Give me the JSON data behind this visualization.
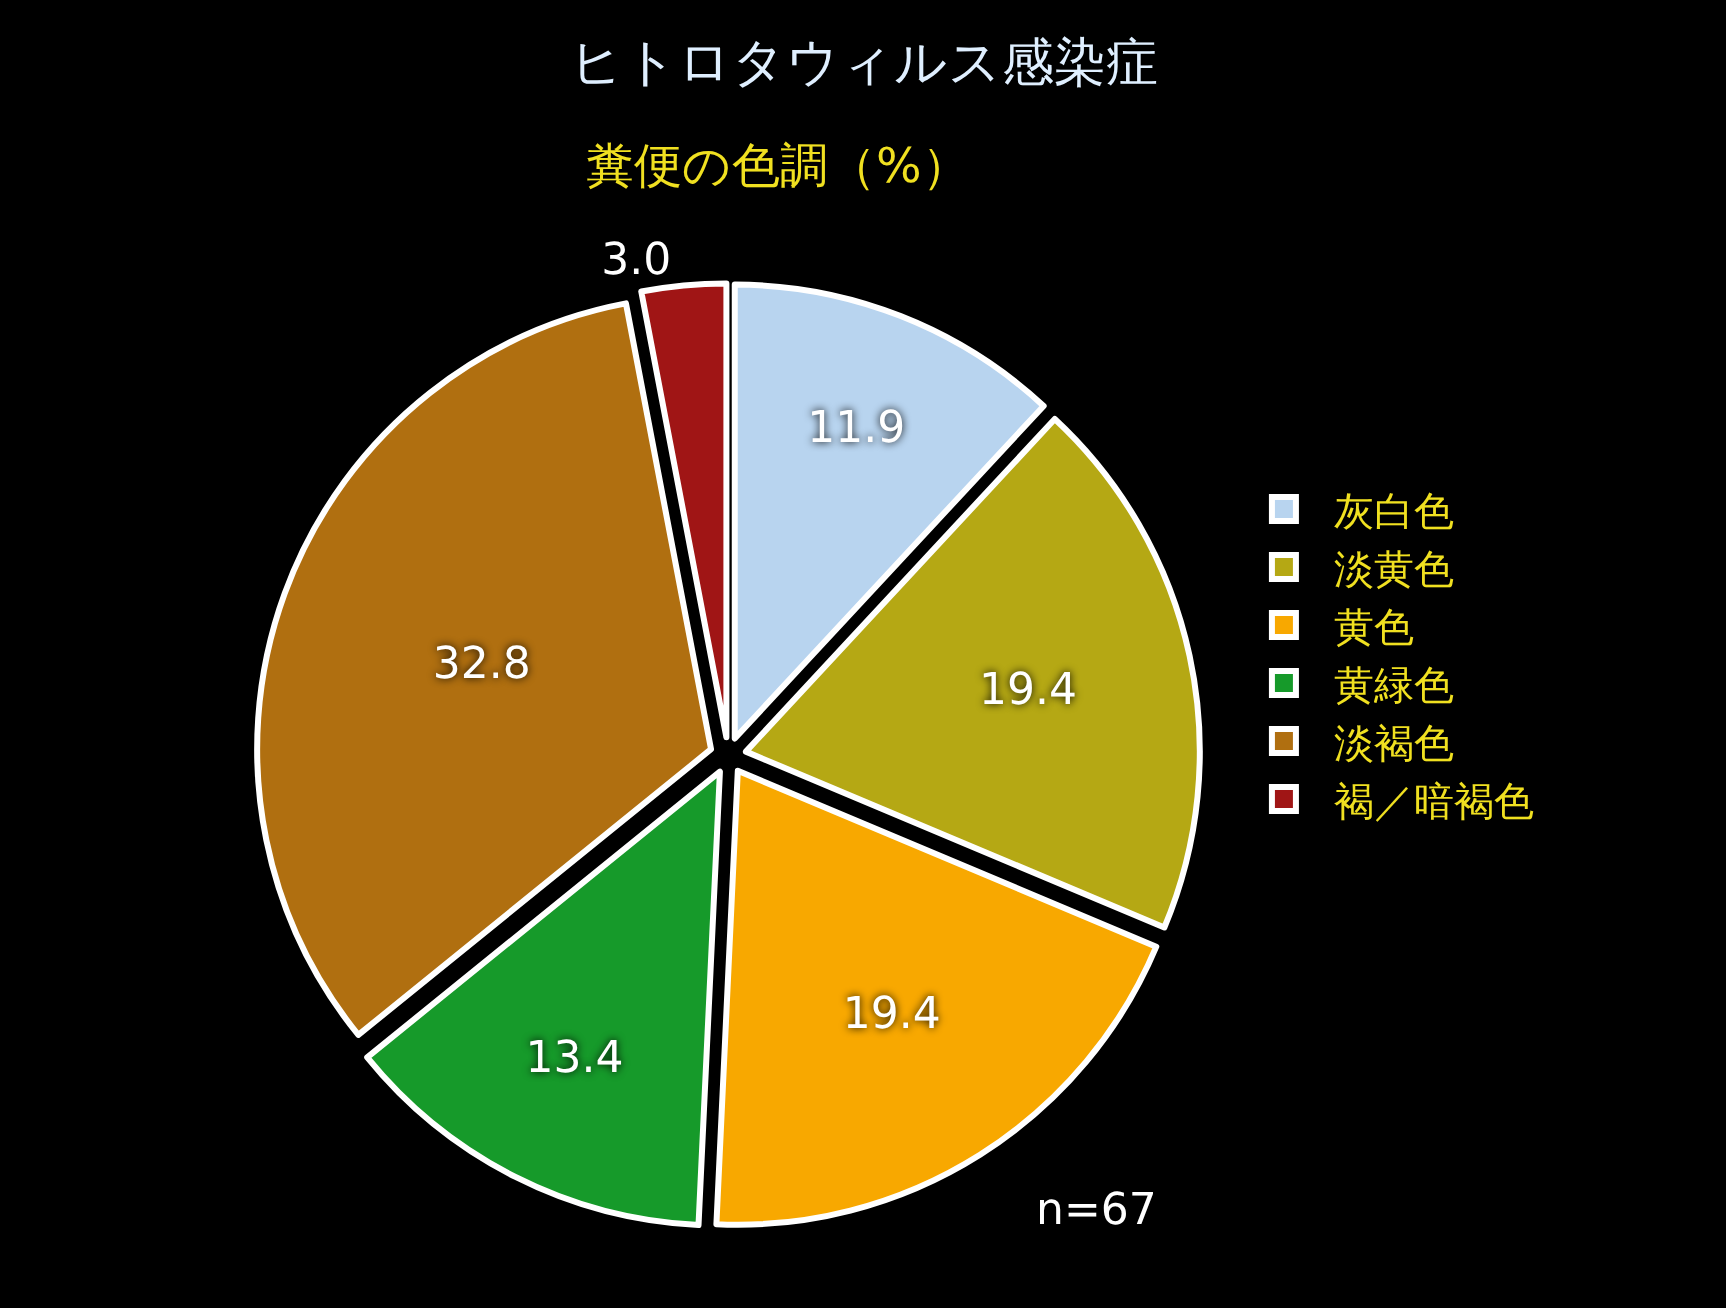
{
  "chart_data": {
    "type": "pie",
    "title": "ヒトロタウィルス感染症",
    "subtitle": "糞便の色調（%）",
    "categories": [
      "灰白色",
      "淡黄色",
      "黄色",
      "黄緑色",
      "淡褐色",
      "褐／暗褐色"
    ],
    "values": [
      11.9,
      19.4,
      19.4,
      13.4,
      32.8,
      3.0
    ],
    "colors": [
      "#b8d4ef",
      "#b5a814",
      "#f8a800",
      "#169a2a",
      "#b06f10",
      "#a01515"
    ],
    "value_labels": [
      "11.9",
      "19.4",
      "19.4",
      "13.4",
      "32.8",
      "3.0"
    ],
    "legend": "right",
    "annotations": [
      "n=67"
    ]
  }
}
